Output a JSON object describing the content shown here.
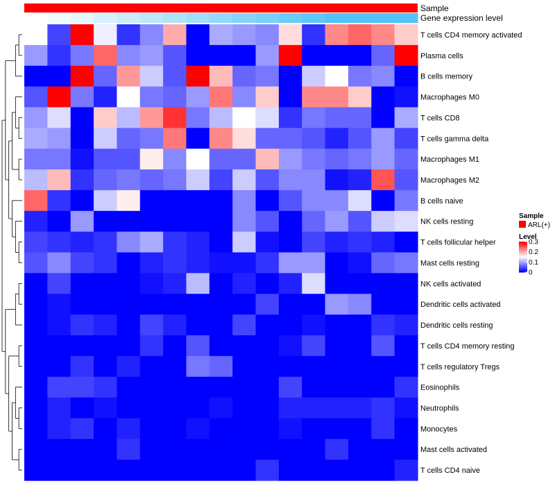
{
  "chart_data": {
    "type": "heatmap",
    "title": "",
    "annotation_tracks": [
      {
        "name": "Sample",
        "color": "#FF0000"
      },
      {
        "name": "Gene expression level",
        "gradient": [
          "#FFFFFF",
          "#4FC3F7"
        ]
      }
    ],
    "rows": [
      "T cells CD4 memory activated",
      "Plasma cells",
      "B cells memory",
      "Macrophages M0",
      "T cells CD8",
      "T cells gamma delta",
      "Macrophages M1",
      "Macrophages M2",
      "B cells naive",
      "NK cells resting",
      "T cells follicular helper",
      "Mast cells resting",
      "NK cells activated",
      "Dendritic cells activated",
      "Dendritic cells resting",
      "T cells CD4 memory resting",
      "T cells regulatory  Tregs",
      "Eosinophils",
      "Neutrophils",
      "Monocytes",
      "Mast cells activated",
      "T cells CD4 naive"
    ],
    "n_columns": 17,
    "values": [
      [
        0.15,
        0.04,
        0.3,
        0.14,
        0.03,
        0.08,
        0.2,
        0.0,
        0.1,
        0.09,
        0.08,
        0.17,
        0.03,
        0.22,
        0.24,
        0.22,
        0.18
      ],
      [
        0.09,
        0.03,
        0.07,
        0.24,
        0.08,
        0.09,
        0.05,
        0.0,
        0.0,
        0.0,
        0.09,
        0.3,
        0.0,
        0.0,
        0.0,
        0.06,
        0.3
      ],
      [
        0.0,
        0.0,
        0.3,
        0.06,
        0.21,
        0.12,
        0.05,
        0.3,
        0.19,
        0.06,
        0.07,
        0.0,
        0.12,
        0.15,
        0.07,
        0.08,
        0.0
      ],
      [
        0.05,
        0.3,
        0.07,
        0.02,
        0.15,
        0.07,
        0.06,
        0.09,
        0.23,
        0.08,
        0.18,
        0.0,
        0.22,
        0.22,
        0.18,
        0.0,
        0.01
      ],
      [
        0.09,
        0.13,
        0.0,
        0.18,
        0.11,
        0.21,
        0.27,
        0.07,
        0.11,
        0.15,
        0.13,
        0.03,
        0.07,
        0.06,
        0.06,
        0.0,
        0.1
      ],
      [
        0.1,
        0.09,
        0.0,
        0.12,
        0.06,
        0.07,
        0.23,
        0.0,
        0.22,
        0.17,
        0.06,
        0.06,
        0.05,
        0.02,
        0.05,
        0.09,
        0.04
      ],
      [
        0.07,
        0.07,
        0.01,
        0.05,
        0.05,
        0.16,
        0.08,
        0.15,
        0.06,
        0.06,
        0.19,
        0.09,
        0.07,
        0.06,
        0.07,
        0.09,
        0.06
      ],
      [
        0.11,
        0.19,
        0.03,
        0.06,
        0.07,
        0.06,
        0.07,
        0.12,
        0.04,
        0.12,
        0.05,
        0.08,
        0.08,
        0.01,
        0.02,
        0.25,
        0.05
      ],
      [
        0.24,
        0.03,
        0.0,
        0.12,
        0.16,
        0.0,
        0.0,
        0.0,
        0.0,
        0.08,
        0.0,
        0.05,
        0.08,
        0.08,
        0.13,
        0.0,
        0.07
      ],
      [
        0.02,
        0.0,
        0.09,
        0.0,
        0.0,
        0.0,
        0.0,
        0.0,
        0.0,
        0.08,
        0.05,
        0.0,
        0.06,
        0.09,
        0.05,
        0.12,
        0.13
      ],
      [
        0.04,
        0.03,
        0.02,
        0.03,
        0.08,
        0.1,
        0.03,
        0.02,
        0.0,
        0.12,
        0.01,
        0.0,
        0.04,
        0.02,
        0.03,
        0.02,
        0.0
      ],
      [
        0.05,
        0.08,
        0.04,
        0.03,
        0.0,
        0.02,
        0.03,
        0.02,
        0.01,
        0.01,
        0.03,
        0.09,
        0.09,
        0.0,
        0.01,
        0.06,
        0.07
      ],
      [
        0.0,
        0.04,
        0.0,
        0.0,
        0.0,
        0.01,
        0.02,
        0.11,
        0.0,
        0.02,
        0.0,
        0.02,
        0.13,
        0.0,
        0.0,
        0.0,
        0.0
      ],
      [
        0.0,
        0.01,
        0.0,
        0.0,
        0.0,
        0.0,
        0.0,
        0.0,
        0.0,
        0.0,
        0.04,
        0.0,
        0.0,
        0.09,
        0.08,
        0.0,
        0.0
      ],
      [
        0.0,
        0.01,
        0.03,
        0.02,
        0.0,
        0.04,
        0.02,
        0.0,
        0.0,
        0.04,
        0.0,
        0.0,
        0.01,
        0.0,
        0.0,
        0.03,
        0.02
      ],
      [
        0.0,
        0.0,
        0.0,
        0.0,
        0.0,
        0.03,
        0.0,
        0.05,
        0.0,
        0.0,
        0.0,
        0.01,
        0.04,
        0.0,
        0.0,
        0.05,
        0.0
      ],
      [
        0.0,
        0.0,
        0.03,
        0.0,
        0.02,
        0.0,
        0.0,
        0.07,
        0.06,
        0.0,
        0.0,
        0.0,
        0.0,
        0.0,
        0.0,
        0.0,
        0.0
      ],
      [
        0.0,
        0.04,
        0.04,
        0.03,
        0.0,
        0.0,
        0.0,
        0.0,
        0.0,
        0.0,
        0.0,
        0.04,
        0.0,
        0.0,
        0.0,
        0.0,
        0.03
      ],
      [
        0.0,
        0.02,
        0.0,
        0.01,
        0.0,
        0.0,
        0.0,
        0.0,
        0.01,
        0.0,
        0.0,
        0.02,
        0.02,
        0.02,
        0.02,
        0.03,
        0.01
      ],
      [
        0.0,
        0.02,
        0.03,
        0.0,
        0.02,
        0.0,
        0.0,
        0.01,
        0.0,
        0.0,
        0.0,
        0.01,
        0.0,
        0.0,
        0.0,
        0.03,
        0.0
      ],
      [
        0.0,
        0.0,
        0.0,
        0.0,
        0.03,
        0.0,
        0.0,
        0.0,
        0.0,
        0.0,
        0.0,
        0.0,
        0.0,
        0.03,
        0.0,
        0.0,
        0.0
      ],
      [
        0.0,
        0.0,
        0.0,
        0.0,
        0.0,
        0.0,
        0.0,
        0.0,
        0.0,
        0.0,
        0.03,
        0.0,
        0.0,
        0.0,
        0.0,
        0.0,
        0.02
      ]
    ],
    "color_scale": {
      "min": 0,
      "max": 0.3,
      "colors": [
        "#0000FF",
        "#FFFFFF",
        "#FF0000"
      ]
    },
    "legend": {
      "sample_title": "Sample",
      "sample_entry": "ARL(+)",
      "level_title": "Level",
      "ticks": [
        0.3,
        0.2,
        0.1,
        0
      ]
    }
  }
}
